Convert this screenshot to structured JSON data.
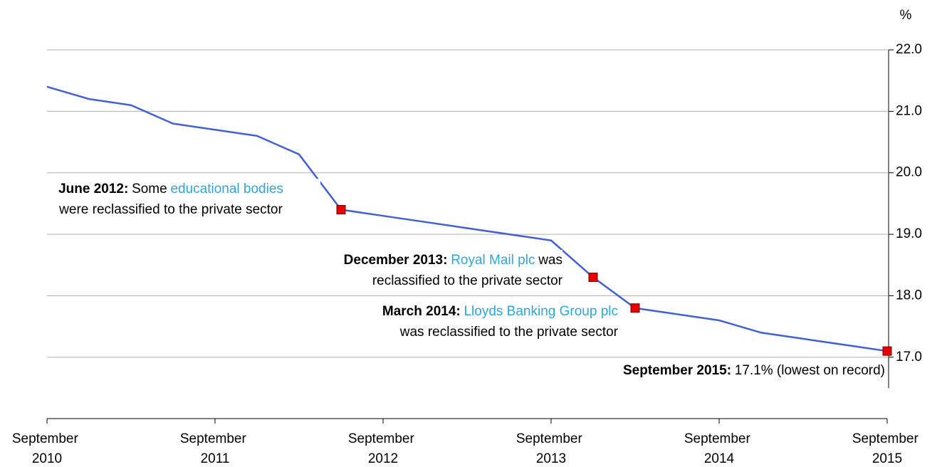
{
  "chart_data": {
    "type": "line",
    "y_unit": "%",
    "categories": [
      "September 2010",
      null,
      null,
      null,
      "September 2011",
      null,
      null,
      null,
      "September 2012",
      null,
      null,
      null,
      "September 2013",
      null,
      null,
      null,
      "September 2014",
      null,
      null,
      null,
      "September 2015"
    ],
    "series": [
      {
        "color": "#4060d8",
        "values": [
          21.4,
          21.2,
          21.1,
          20.8,
          20.7,
          20.6,
          20.3,
          19.4,
          19.3,
          19.2,
          19.1,
          19.0,
          18.9,
          18.3,
          17.8,
          17.7,
          17.6,
          17.4,
          17.3,
          17.2,
          17.1
        ]
      }
    ],
    "marker_color": "#e60000",
    "ylim": [
      16.5,
      22
    ],
    "yticks": [
      {
        "value": 22,
        "label": "22.0"
      },
      {
        "value": 21,
        "label": "21.0"
      },
      {
        "value": 20,
        "label": "20.0"
      },
      {
        "value": 19,
        "label": "19.0"
      },
      {
        "value": 18,
        "label": "18.0"
      },
      {
        "value": 17,
        "label": "17.0"
      }
    ],
    "grid": true,
    "annotations": [
      {
        "point": 7,
        "label": "June 2012:",
        "before": "Some",
        "link": "educational bodies",
        "line2": "were reclassified to the private sector"
      },
      {
        "point": 13,
        "label": "December 2013:",
        "link": "Royal Mail plc",
        "after": "was",
        "line2": "reclassified to the private sector"
      },
      {
        "point": 14,
        "label": "March 2014:",
        "link": "Lloyds Banking Group plc",
        "line2": "was reclassified to the private sector"
      },
      {
        "point": 20,
        "label": "September 2015:",
        "after": "17.1% (lowest on record)"
      }
    ]
  }
}
